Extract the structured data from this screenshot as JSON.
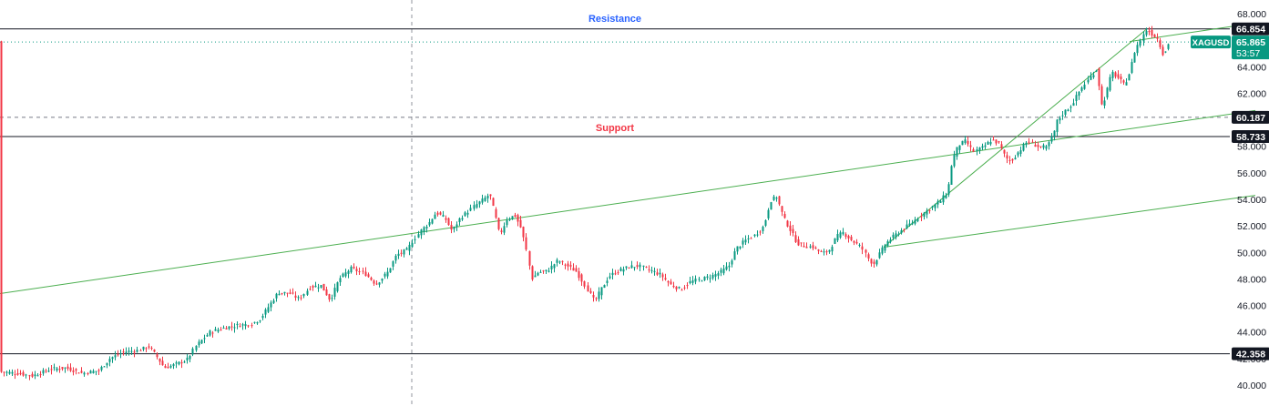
{
  "chart_data": {
    "type": "candlestick",
    "symbol": "XAGUSD",
    "last_price": "65.865",
    "countdown": "53:57",
    "ylim": [
      39.3,
      68.2
    ],
    "y_ticks": [
      "40.000",
      "42.000",
      "44.000",
      "46.000",
      "48.000",
      "50.000",
      "52.000",
      "54.000",
      "56.000",
      "58.000",
      "60.000",
      "62.000",
      "64.000",
      "66.000",
      "68.000"
    ],
    "levels": [
      {
        "value": 66.854,
        "label": "66.854",
        "style": "solid"
      },
      {
        "value": 60.187,
        "label": "60.187",
        "style": "dashed"
      },
      {
        "value": 58.733,
        "label": "58.733",
        "style": "solid"
      },
      {
        "value": 42.358,
        "label": "42.358",
        "style": "solid"
      }
    ],
    "annotations": [
      {
        "text": "Resistance",
        "color": "#2962ff"
      },
      {
        "text": "Support",
        "color": "#f23645"
      }
    ],
    "price_path": [
      [
        0,
        41.0
      ],
      [
        18,
        40.9
      ],
      [
        35,
        40.7
      ],
      [
        55,
        41.2
      ],
      [
        72,
        41.3
      ],
      [
        90,
        40.9
      ],
      [
        108,
        41.1
      ],
      [
        120,
        42.0
      ],
      [
        135,
        42.5
      ],
      [
        150,
        42.6
      ],
      [
        163,
        42.9
      ],
      [
        172,
        42.1
      ],
      [
        180,
        41.3
      ],
      [
        190,
        41.5
      ],
      [
        205,
        41.9
      ],
      [
        215,
        43.0
      ],
      [
        230,
        44.0
      ],
      [
        245,
        44.3
      ],
      [
        260,
        44.5
      ],
      [
        275,
        44.6
      ],
      [
        285,
        45.0
      ],
      [
        295,
        46.0
      ],
      [
        305,
        47.0
      ],
      [
        318,
        46.9
      ],
      [
        328,
        46.5
      ],
      [
        340,
        47.4
      ],
      [
        352,
        47.5
      ],
      [
        362,
        46.4
      ],
      [
        372,
        48.0
      ],
      [
        385,
        48.8
      ],
      [
        400,
        48.4
      ],
      [
        412,
        47.6
      ],
      [
        425,
        48.5
      ],
      [
        435,
        49.8
      ],
      [
        447,
        50.2
      ],
      [
        452,
        50.8
      ],
      [
        462,
        51.7
      ],
      [
        470,
        52.2
      ],
      [
        478,
        53.0
      ],
      [
        488,
        52.6
      ],
      [
        496,
        51.6
      ],
      [
        505,
        52.6
      ],
      [
        512,
        53.0
      ],
      [
        520,
        53.5
      ],
      [
        530,
        54.0
      ],
      [
        537,
        54.4
      ],
      [
        543,
        52.8
      ],
      [
        548,
        51.3
      ],
      [
        556,
        52.5
      ],
      [
        565,
        52.8
      ],
      [
        572,
        51.8
      ],
      [
        578,
        50.0
      ],
      [
        583,
        48.0
      ],
      [
        590,
        48.5
      ],
      [
        600,
        48.6
      ],
      [
        612,
        49.4
      ],
      [
        622,
        49.0
      ],
      [
        632,
        48.6
      ],
      [
        642,
        47.5
      ],
      [
        652,
        46.3
      ],
      [
        660,
        47.3
      ],
      [
        668,
        48.2
      ],
      [
        678,
        48.6
      ],
      [
        690,
        48.9
      ],
      [
        700,
        49.0
      ],
      [
        712,
        48.7
      ],
      [
        725,
        48.3
      ],
      [
        735,
        47.6
      ],
      [
        747,
        47.2
      ],
      [
        758,
        47.8
      ],
      [
        770,
        48.0
      ],
      [
        780,
        48.2
      ],
      [
        790,
        48.5
      ],
      [
        800,
        49.0
      ],
      [
        808,
        50.3
      ],
      [
        818,
        50.9
      ],
      [
        828,
        51.3
      ],
      [
        838,
        52.0
      ],
      [
        845,
        53.9
      ],
      [
        852,
        54.2
      ],
      [
        860,
        52.6
      ],
      [
        868,
        51.6
      ],
      [
        875,
        50.7
      ],
      [
        882,
        50.5
      ],
      [
        892,
        50.4
      ],
      [
        902,
        49.9
      ],
      [
        910,
        50.2
      ],
      [
        918,
        51.2
      ],
      [
        925,
        51.5
      ],
      [
        935,
        50.9
      ],
      [
        945,
        50.4
      ],
      [
        953,
        49.5
      ],
      [
        958,
        49.1
      ],
      [
        965,
        49.9
      ],
      [
        972,
        50.7
      ],
      [
        982,
        51.3
      ],
      [
        992,
        51.8
      ],
      [
        1002,
        52.3
      ],
      [
        1012,
        52.9
      ],
      [
        1022,
        53.4
      ],
      [
        1032,
        53.9
      ],
      [
        1040,
        54.6
      ],
      [
        1045,
        57.0
      ],
      [
        1052,
        58.1
      ],
      [
        1060,
        58.4
      ],
      [
        1068,
        57.6
      ],
      [
        1078,
        57.9
      ],
      [
        1088,
        58.5
      ],
      [
        1096,
        58.2
      ],
      [
        1104,
        57.1
      ],
      [
        1110,
        56.9
      ],
      [
        1118,
        57.6
      ],
      [
        1128,
        58.4
      ],
      [
        1138,
        58.0
      ],
      [
        1148,
        57.9
      ],
      [
        1156,
        58.9
      ],
      [
        1160,
        59.9
      ],
      [
        1168,
        60.6
      ],
      [
        1176,
        61.1
      ],
      [
        1186,
        62.3
      ],
      [
        1196,
        63.2
      ],
      [
        1204,
        63.9
      ],
      [
        1208,
        61.0
      ],
      [
        1212,
        61.6
      ],
      [
        1220,
        63.6
      ],
      [
        1228,
        63.1
      ],
      [
        1234,
        62.6
      ],
      [
        1240,
        63.6
      ],
      [
        1246,
        65.3
      ],
      [
        1252,
        66.1
      ],
      [
        1258,
        66.8
      ],
      [
        1265,
        66.4
      ],
      [
        1270,
        66.1
      ],
      [
        1276,
        65.0
      ],
      [
        1280,
        65.3
      ],
      [
        1283,
        65.9
      ]
    ],
    "trend_lines": [
      {
        "from": [
          0,
          46.9
        ],
        "to": [
          1378,
          60.7
        ]
      },
      {
        "from": [
          970,
          50.4
        ],
        "to": [
          1378,
          54.3
        ]
      },
      {
        "from": [
          970,
          50.4
        ],
        "to": [
          1258,
          66.8
        ]
      },
      {
        "from": [
          1240,
          65.9
        ],
        "to": [
          1378,
          67.3
        ]
      }
    ],
    "vertical_marker_x": 452
  },
  "colors": {
    "up": "#089981",
    "down": "#f23645",
    "trend": "#4caf50",
    "level_line": "#131722",
    "grid_dash": "#787b86",
    "badge_dark": "#131722",
    "badge_green": "#089981",
    "text": "#131722"
  }
}
